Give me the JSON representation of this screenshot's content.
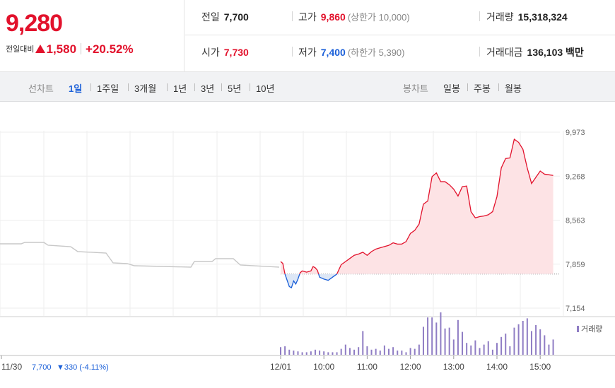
{
  "price": {
    "current": "9,280",
    "change_label": "전일대비",
    "change": "1,580",
    "change_pct": "+20.52%"
  },
  "stats": {
    "prev": {
      "label": "전일",
      "value": "7,700"
    },
    "high": {
      "label": "고가",
      "value": "9,860",
      "sub": "(상한가 10,000)"
    },
    "volume": {
      "label": "거래량",
      "value": "15,318,324"
    },
    "open": {
      "label": "시가",
      "value": "7,730"
    },
    "low": {
      "label": "저가",
      "value": "7,400",
      "sub": "(하한가 5,390)"
    },
    "amount": {
      "label": "거래대금",
      "value": "136,103 백만"
    }
  },
  "tabs": {
    "line_label": "선차트",
    "line_periods": [
      "1일",
      "1주일",
      "3개월",
      "1년",
      "3년",
      "5년",
      "10년"
    ],
    "active": "1일",
    "candle_label": "봉차트",
    "candle_periods": [
      "일봉",
      "주봉",
      "월봉"
    ]
  },
  "colors": {
    "up": "#e2122c",
    "down": "#1a5fd8",
    "volume": "#8f7dc4",
    "prev_day": "#c8c8c8"
  },
  "chart_data": {
    "type": "line",
    "title": "",
    "y_ticks": [
      "9,973",
      "9,268",
      "8,563",
      "7,859",
      "7,154"
    ],
    "ylim": [
      7154,
      9973
    ],
    "baseline": 7700,
    "x_tick_labels": [
      "12/01",
      "10:00",
      "11:00",
      "12:00",
      "13:00",
      "14:00",
      "15:00"
    ],
    "x_tick_hours": [
      9,
      10,
      11,
      12,
      13,
      14,
      15
    ],
    "xlim": [
      9,
      15.5
    ],
    "previous_day": {
      "date_label": "11/30",
      "close_label": "7,700",
      "change_label": "▼330 (-4.11%)",
      "time": [
        8.5,
        8.6,
        8.7,
        8.8,
        8.9,
        8.95
      ],
      "price": [
        8150,
        8100,
        7960,
        7930,
        7900,
        7870
      ]
    },
    "series": [
      {
        "time": [
          9.0,
          9.05,
          9.1,
          9.15,
          9.2,
          9.25,
          9.3,
          9.35,
          9.4,
          9.45,
          9.5,
          9.6,
          9.7,
          9.75,
          9.8,
          9.85,
          9.9,
          10.0,
          10.1,
          10.2,
          10.3,
          10.4,
          10.5,
          10.6,
          10.7,
          10.8,
          10.9,
          11.0,
          11.1,
          11.2,
          11.3,
          11.4,
          11.5,
          11.6,
          11.7,
          11.8,
          11.9,
          12.0,
          12.1,
          12.15,
          12.2,
          12.3,
          12.4,
          12.5,
          12.6,
          12.7,
          12.8,
          12.9,
          13.0,
          13.1,
          13.2,
          13.3,
          13.4,
          13.5,
          13.6,
          13.7,
          13.8,
          13.9,
          14.0,
          14.1,
          14.2,
          14.3,
          14.4,
          14.5,
          14.6,
          14.7,
          14.8,
          14.9,
          15.0,
          15.1,
          15.2,
          15.3
        ],
        "price": [
          7900,
          7870,
          7700,
          7600,
          7500,
          7480,
          7590,
          7540,
          7620,
          7720,
          7750,
          7730,
          7750,
          7820,
          7800,
          7760,
          7650,
          7620,
          7600,
          7650,
          7700,
          7850,
          7900,
          7950,
          8000,
          8020,
          8050,
          8000,
          8060,
          8100,
          8120,
          8140,
          8160,
          8200,
          8180,
          8180,
          8220,
          8350,
          8400,
          8450,
          8500,
          8820,
          8870,
          9260,
          9320,
          9180,
          9180,
          9130,
          9060,
          8950,
          9100,
          9110,
          8700,
          8600,
          8620,
          8630,
          8650,
          8700,
          8940,
          9400,
          9550,
          9560,
          9860,
          9810,
          9700,
          9400,
          9150,
          9250,
          9350,
          9300,
          9290,
          9280
        ]
      }
    ],
    "volume": {
      "label": "거래량",
      "time": [
        9.0,
        9.1,
        9.2,
        9.3,
        9.4,
        9.5,
        9.6,
        9.7,
        9.8,
        9.9,
        10.0,
        10.1,
        10.2,
        10.3,
        10.4,
        10.5,
        10.6,
        10.7,
        10.8,
        10.9,
        11.0,
        11.1,
        11.2,
        11.3,
        11.4,
        11.5,
        11.6,
        11.7,
        11.8,
        11.9,
        12.0,
        12.1,
        12.2,
        12.3,
        12.4,
        12.5,
        12.6,
        12.7,
        12.8,
        12.9,
        13.0,
        13.1,
        13.2,
        13.3,
        13.4,
        13.5,
        13.6,
        13.7,
        13.8,
        13.9,
        14.0,
        14.1,
        14.2,
        14.3,
        14.4,
        14.5,
        14.6,
        14.7,
        14.8,
        14.9,
        15.0,
        15.1,
        15.2,
        15.3
      ],
      "value": [
        9,
        10,
        6,
        5,
        4,
        3,
        3,
        4,
        6,
        5,
        4,
        3,
        3,
        3,
        7,
        12,
        8,
        6,
        9,
        28,
        10,
        6,
        7,
        5,
        11,
        7,
        9,
        5,
        5,
        3,
        8,
        7,
        12,
        33,
        44,
        44,
        38,
        50,
        31,
        32,
        18,
        41,
        27,
        14,
        11,
        17,
        8,
        12,
        16,
        6,
        14,
        21,
        25,
        10,
        32,
        36,
        40,
        43,
        28,
        35,
        30,
        23,
        12,
        18
      ]
    }
  }
}
